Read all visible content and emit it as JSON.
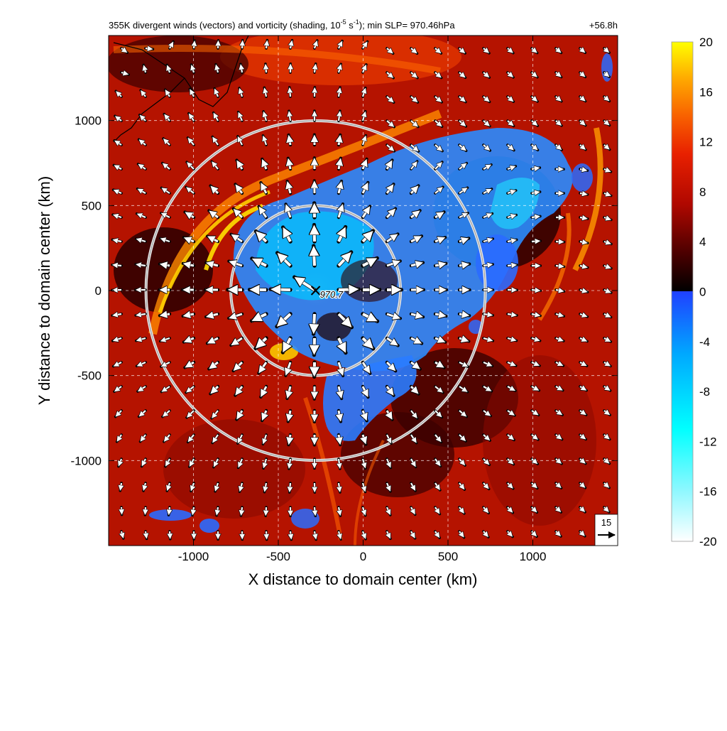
{
  "chart_data": {
    "type": "heatmap",
    "title_prefix": "355K divergent winds (vectors) and vorticity (shading, 10",
    "title_exponent": "-5",
    "title_unit_tail": " s",
    "title_unit_exponent": "-1",
    "title_suffix": "); min SLP= 970.46hPa",
    "forecast_time": "+56.8h",
    "xlabel": "X distance to domain center (km)",
    "ylabel": "Y distance to domain center (km)",
    "xlim": [
      -1500,
      1500
    ],
    "ylim": [
      -1500,
      1500
    ],
    "x_ticks": [
      -1000,
      -500,
      0,
      500,
      1000
    ],
    "y_ticks": [
      -1000,
      -500,
      0,
      500,
      1000
    ],
    "x_tick_labels": [
      "-1000",
      "-500",
      "0",
      "500",
      "1000"
    ],
    "y_tick_labels": [
      "-1000",
      "-500",
      "0",
      "500",
      "1000"
    ],
    "grid": true,
    "storm_center": {
      "x": -280,
      "y": 0,
      "label": "970.7"
    },
    "range_rings_km": [
      500,
      1000
    ],
    "reference_vector": {
      "value": 15,
      "label": "15"
    },
    "colorbar": {
      "min": -20,
      "max": 20,
      "tick_values": [
        20,
        16,
        12,
        8,
        4,
        0,
        -4,
        -8,
        -12,
        -16,
        -20
      ],
      "tick_labels": [
        "20",
        "16",
        "12",
        "8",
        "4",
        "0",
        "-4",
        "-8",
        "-12",
        "-16",
        "-20"
      ],
      "colors_positive": [
        "#1a0000",
        "#5a0000",
        "#9a0500",
        "#d41a00",
        "#f04000",
        "#fa7a00",
        "#ffb400",
        "#ffe000",
        "#ffff00"
      ],
      "colors_negative": [
        "#ffffff",
        "#a0f8ff",
        "#00ffff",
        "#00c0ff",
        "#2040ff"
      ]
    }
  }
}
